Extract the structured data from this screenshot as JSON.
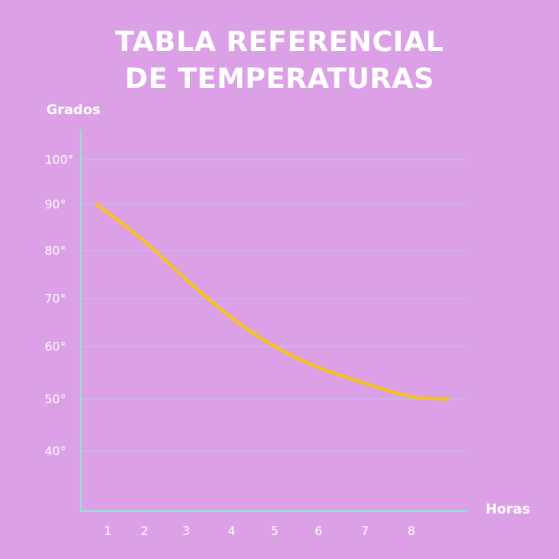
{
  "chart_data": {
    "type": "line",
    "title_lines": [
      "TABLA REFERENCIAL",
      "DE TEMPERATURAS"
    ],
    "ylabel": "Grados",
    "xlabel": "Horas",
    "y_ticks": [
      {
        "value": 100,
        "label": "100°"
      },
      {
        "value": 90,
        "label": "90°"
      },
      {
        "value": 80,
        "label": "80°"
      },
      {
        "value": 70,
        "label": "70°"
      },
      {
        "value": 60,
        "label": "60°"
      },
      {
        "value": 50,
        "label": "50°"
      },
      {
        "value": 40,
        "label": "40°"
      }
    ],
    "x_ticks": [
      "1",
      "2",
      "3",
      "4",
      "5",
      "6",
      "7",
      "8"
    ],
    "x": [
      0.7,
      2,
      3,
      4,
      5,
      6,
      7,
      8,
      8.8
    ],
    "series": [
      {
        "values": [
          90,
          82,
          74,
          66,
          60,
          56,
          53,
          50.5,
          50
        ]
      }
    ],
    "grid": true,
    "colors": {
      "background": "#dba0e6",
      "line": "#f5c518",
      "grid": "#b9c8f0",
      "axis": "#8fe3d6",
      "text": "#ffffff"
    }
  }
}
